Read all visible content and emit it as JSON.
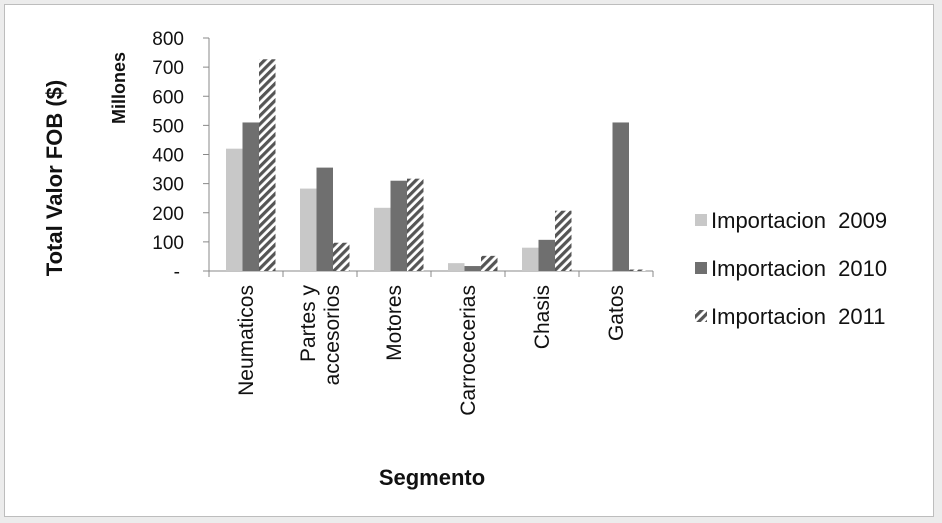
{
  "chart_data": {
    "type": "bar",
    "title": "",
    "ylabel": "Total Valor FOB ($)",
    "yunit_label": "Millones",
    "xlabel": "Segmento",
    "categories": [
      "Neumaticos",
      "Partes y accesorios",
      "Motores",
      "Carrocecerias",
      "Chasis",
      "Gatos"
    ],
    "category_lines": [
      [
        "Neumaticos"
      ],
      [
        "Partes y",
        "accesorios"
      ],
      [
        "Motores"
      ],
      [
        "Carrocecerias"
      ],
      [
        "Chasis"
      ],
      [
        "Gatos"
      ]
    ],
    "series": [
      {
        "name": "Importacion  2009",
        "values": [
          420,
          283,
          217,
          27,
          80,
          0
        ],
        "color": "#c8c8c8",
        "pattern": "solid"
      },
      {
        "name": "Importacion  2010",
        "values": [
          510,
          355,
          310,
          17,
          107,
          510
        ],
        "color": "#6f6f6f",
        "pattern": "solid"
      },
      {
        "name": "Importacion  2011",
        "values": [
          727,
          97,
          317,
          52,
          207,
          5
        ],
        "color": "#555555",
        "pattern": "hatch"
      }
    ],
    "ylim": [
      0,
      800
    ],
    "yticks": [
      0,
      100,
      200,
      300,
      400,
      500,
      600,
      700,
      800
    ],
    "ytick_labels": [
      "-",
      "100",
      "200",
      "300",
      "400",
      "500",
      "600",
      "700",
      "800"
    ],
    "grid": false,
    "legend_position": "right"
  }
}
